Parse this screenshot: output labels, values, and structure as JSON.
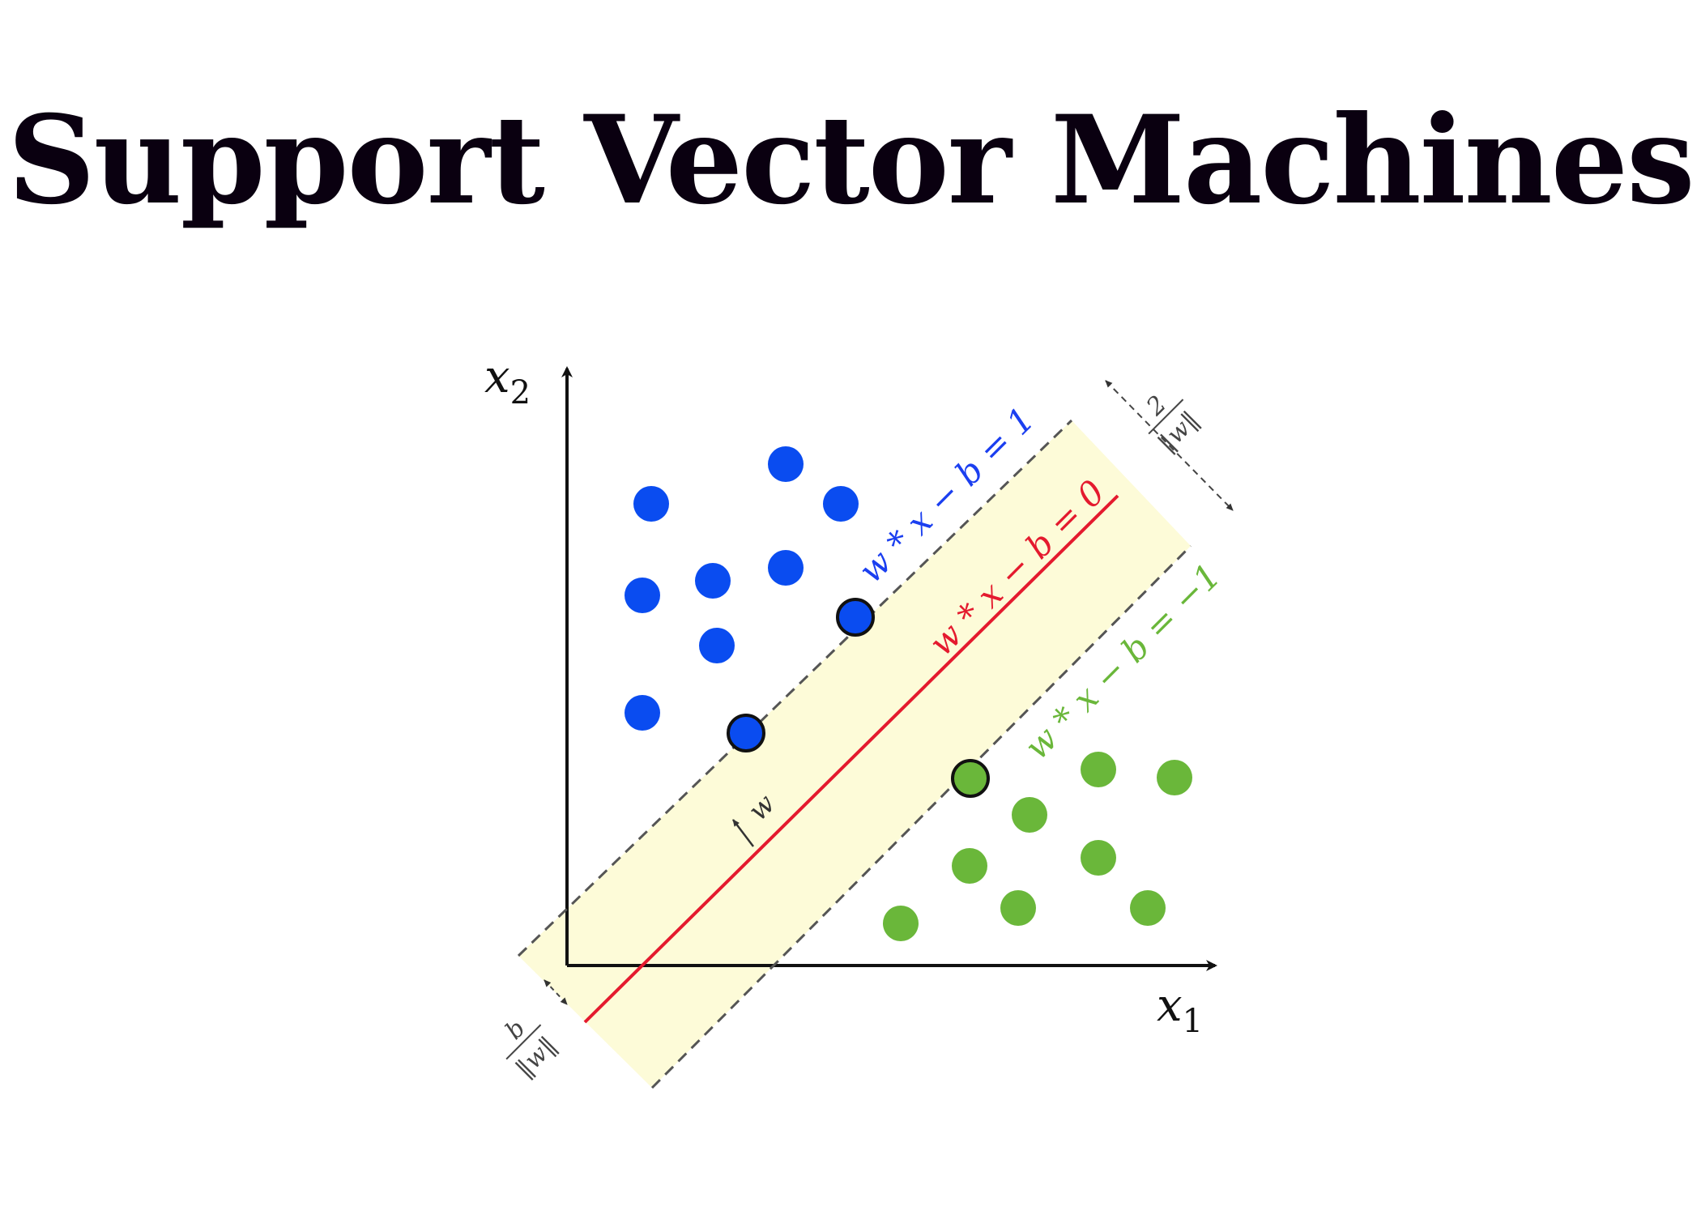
{
  "title": "Support Vector Machines",
  "colors": {
    "blue_class": "#0a4cf0",
    "green_class": "#6ab73a",
    "hyperplane": "#e41a2e",
    "margin_fill": "#fdfbd8",
    "axis": "#111111",
    "dashed": "#555555"
  },
  "axes": {
    "x_label": "x",
    "x_sub": "1",
    "y_label": "x",
    "y_sub": "2"
  },
  "lines": {
    "upper_margin": "w * x − b = 1",
    "hyperplane": "w * x − b = 0",
    "lower_margin": "w * x − b = −1"
  },
  "annotations": {
    "margin_width_num": "2",
    "margin_width_den": "‖w‖",
    "offset_num": "b",
    "offset_den": "‖w‖",
    "normal_vector": "w"
  }
}
